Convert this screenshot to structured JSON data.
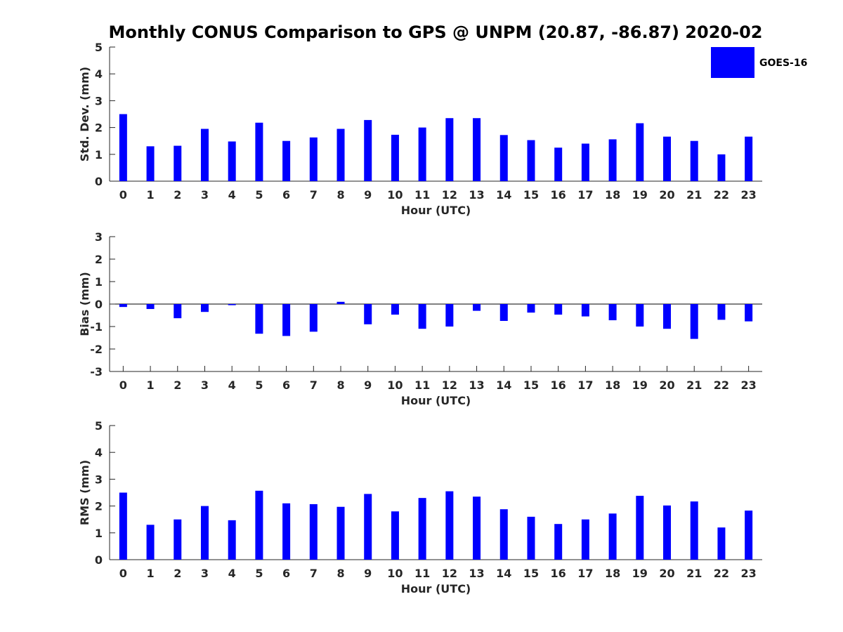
{
  "title": "Monthly CONUS Comparison to GPS @ UNPM (20.87, -86.87) 2020-02",
  "legend": {
    "label": "GOES-16",
    "color": "#0000ff"
  },
  "bar_color": "#0000ff",
  "chart_data": [
    {
      "type": "bar",
      "title": "Monthly CONUS Comparison to GPS @ UNPM (20.87, -86.87) 2020-02",
      "xlabel": "Hour (UTC)",
      "ylabel": "Std. Dev. (mm)",
      "ylim": [
        0,
        5
      ],
      "yticks": [
        "0",
        "1",
        "2",
        "3",
        "4",
        "5"
      ],
      "categories": [
        "0",
        "1",
        "2",
        "3",
        "4",
        "5",
        "6",
        "7",
        "8",
        "9",
        "10",
        "11",
        "12",
        "13",
        "14",
        "15",
        "16",
        "17",
        "18",
        "19",
        "20",
        "21",
        "22",
        "23"
      ],
      "series": [
        {
          "name": "GOES-16",
          "values": [
            2.5,
            1.3,
            1.32,
            1.95,
            1.48,
            2.18,
            1.5,
            1.63,
            1.95,
            2.28,
            1.73,
            2.0,
            2.35,
            2.35,
            1.72,
            1.53,
            1.25,
            1.4,
            1.56,
            2.16,
            1.66,
            1.5,
            1.0,
            1.66
          ]
        }
      ]
    },
    {
      "type": "bar",
      "xlabel": "Hour (UTC)",
      "ylabel": "Bias (mm)",
      "ylim": [
        -3,
        3
      ],
      "yticks": [
        "-3",
        "-2",
        "-1",
        "0",
        "1",
        "2",
        "3"
      ],
      "categories": [
        "0",
        "1",
        "2",
        "3",
        "4",
        "5",
        "6",
        "7",
        "8",
        "9",
        "10",
        "11",
        "12",
        "13",
        "14",
        "15",
        "16",
        "17",
        "18",
        "19",
        "20",
        "21",
        "22",
        "23"
      ],
      "series": [
        {
          "name": "GOES-16",
          "values": [
            -0.13,
            -0.22,
            -0.63,
            -0.35,
            -0.05,
            -1.32,
            -1.42,
            -1.23,
            0.1,
            -0.9,
            -0.47,
            -1.1,
            -1.0,
            -0.3,
            -0.75,
            -0.38,
            -0.47,
            -0.55,
            -0.72,
            -1.0,
            -1.1,
            -1.55,
            -0.7,
            -0.77
          ]
        }
      ]
    },
    {
      "type": "bar",
      "xlabel": "Hour (UTC)",
      "ylabel": "RMS (mm)",
      "ylim": [
        0,
        5
      ],
      "yticks": [
        "0",
        "1",
        "2",
        "3",
        "4",
        "5"
      ],
      "categories": [
        "0",
        "1",
        "2",
        "3",
        "4",
        "5",
        "6",
        "7",
        "8",
        "9",
        "10",
        "11",
        "12",
        "13",
        "14",
        "15",
        "16",
        "17",
        "18",
        "19",
        "20",
        "21",
        "22",
        "23"
      ],
      "series": [
        {
          "name": "GOES-16",
          "values": [
            2.5,
            1.3,
            1.5,
            2.0,
            1.47,
            2.57,
            2.1,
            2.07,
            1.97,
            2.45,
            1.8,
            2.3,
            2.55,
            2.35,
            1.88,
            1.6,
            1.33,
            1.5,
            1.72,
            2.38,
            2.02,
            2.17,
            1.2,
            1.83
          ]
        }
      ]
    }
  ]
}
